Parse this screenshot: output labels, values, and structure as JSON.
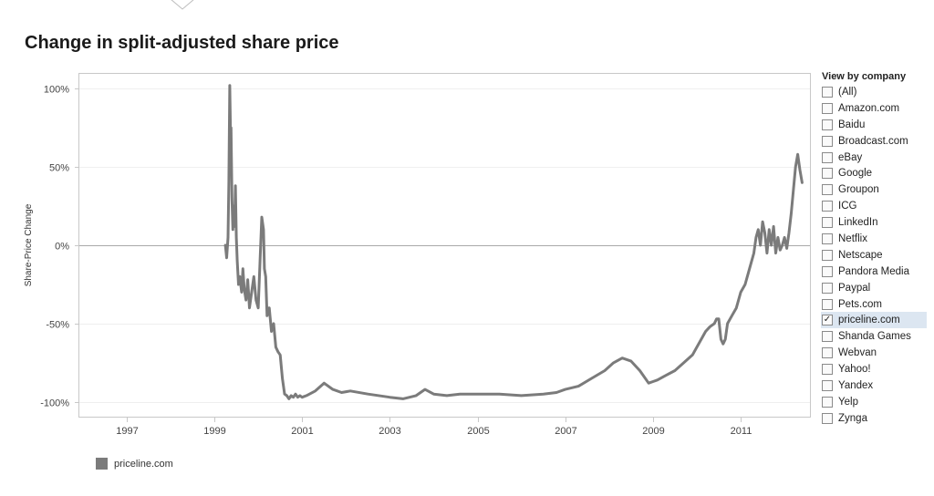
{
  "chart_data": {
    "type": "line",
    "title": "Change in split-adjusted share price",
    "xlabel": "",
    "ylabel": "Share-Price Change",
    "xlim": [
      1995.9,
      2012.6
    ],
    "ylim": [
      -110,
      110
    ],
    "y_ticks": [
      {
        "value": 100,
        "label": "100%"
      },
      {
        "value": 50,
        "label": "50%"
      },
      {
        "value": 0,
        "label": "0%"
      },
      {
        "value": -50,
        "label": "-50%"
      },
      {
        "value": -100,
        "label": "-100%"
      }
    ],
    "x_ticks": [
      {
        "value": 1997,
        "label": "1997"
      },
      {
        "value": 1999,
        "label": "1999"
      },
      {
        "value": 2001,
        "label": "2001"
      },
      {
        "value": 2003,
        "label": "2003"
      },
      {
        "value": 2005,
        "label": "2005"
      },
      {
        "value": 2007,
        "label": "2007"
      },
      {
        "value": 2009,
        "label": "2009"
      },
      {
        "value": 2011,
        "label": "2011"
      }
    ],
    "grid": true,
    "legend_position": "bottom-left",
    "series": [
      {
        "name": "priceline.com",
        "color": "#7b7b7b",
        "x": [
          1999.25,
          1999.28,
          1999.31,
          1999.33,
          1999.35,
          1999.37,
          1999.38,
          1999.4,
          1999.42,
          1999.44,
          1999.46,
          1999.48,
          1999.5,
          1999.52,
          1999.55,
          1999.58,
          1999.62,
          1999.65,
          1999.68,
          1999.72,
          1999.76,
          1999.8,
          1999.85,
          1999.9,
          1999.95,
          2000.0,
          2000.04,
          2000.08,
          2000.12,
          2000.14,
          2000.17,
          2000.2,
          2000.25,
          2000.3,
          2000.35,
          2000.4,
          2000.45,
          2000.5,
          2000.55,
          2000.6,
          2000.65,
          2000.7,
          2000.75,
          2000.8,
          2000.85,
          2000.9,
          2000.95,
          2001.0,
          2001.1,
          2001.3,
          2001.5,
          2001.7,
          2001.9,
          2002.1,
          2002.5,
          2003.0,
          2003.3,
          2003.6,
          2003.8,
          2004.0,
          2004.3,
          2004.6,
          2005.0,
          2005.5,
          2006.0,
          2006.5,
          2006.8,
          2007.0,
          2007.3,
          2007.6,
          2007.9,
          2008.1,
          2008.3,
          2008.5,
          2008.7,
          2008.9,
          2009.0,
          2009.1,
          2009.3,
          2009.5,
          2009.7,
          2009.9,
          2010.1,
          2010.2,
          2010.3,
          2010.4,
          2010.45,
          2010.5,
          2010.55,
          2010.6,
          2010.65,
          2010.7,
          2010.8,
          2010.9,
          2011.0,
          2011.1,
          2011.2,
          2011.3,
          2011.35,
          2011.4,
          2011.45,
          2011.5,
          2011.55,
          2011.6,
          2011.65,
          2011.7,
          2011.75,
          2011.8,
          2011.85,
          2011.9,
          2011.95,
          2012.0,
          2012.05,
          2012.1,
          2012.15,
          2012.2,
          2012.25,
          2012.3,
          2012.35,
          2012.4
        ],
        "values": [
          0,
          -8,
          5,
          40,
          102,
          65,
          75,
          30,
          10,
          25,
          12,
          38,
          5,
          -10,
          -25,
          -20,
          -30,
          -15,
          -28,
          -35,
          -22,
          -40,
          -30,
          -20,
          -35,
          -40,
          -10,
          18,
          10,
          -15,
          -20,
          -45,
          -40,
          -55,
          -50,
          -65,
          -68,
          -70,
          -85,
          -95,
          -96,
          -98,
          -96,
          -97,
          -95,
          -97,
          -96,
          -97,
          -96,
          -93,
          -88,
          -92,
          -94,
          -93,
          -95,
          -97,
          -98,
          -96,
          -92,
          -95,
          -96,
          -95,
          -95,
          -95,
          -96,
          -95,
          -94,
          -92,
          -90,
          -85,
          -80,
          -75,
          -72,
          -74,
          -80,
          -88,
          -87,
          -86,
          -83,
          -80,
          -75,
          -70,
          -60,
          -55,
          -52,
          -50,
          -47,
          -47,
          -60,
          -63,
          -60,
          -50,
          -45,
          -40,
          -30,
          -25,
          -15,
          -5,
          5,
          10,
          0,
          15,
          8,
          -5,
          10,
          0,
          12,
          -5,
          5,
          -3,
          0,
          5,
          -2,
          8,
          20,
          35,
          50,
          58,
          48,
          40
        ]
      }
    ]
  },
  "filter": {
    "title": "View by company",
    "options": [
      {
        "label": "(All)",
        "checked": false
      },
      {
        "label": "Amazon.com",
        "checked": false
      },
      {
        "label": "Baidu",
        "checked": false
      },
      {
        "label": "Broadcast.com",
        "checked": false
      },
      {
        "label": "eBay",
        "checked": false
      },
      {
        "label": "Google",
        "checked": false
      },
      {
        "label": "Groupon",
        "checked": false
      },
      {
        "label": "ICG",
        "checked": false
      },
      {
        "label": "LinkedIn",
        "checked": false
      },
      {
        "label": "Netflix",
        "checked": false
      },
      {
        "label": "Netscape",
        "checked": false
      },
      {
        "label": "Pandora Media",
        "checked": false
      },
      {
        "label": "Paypal",
        "checked": false
      },
      {
        "label": "Pets.com",
        "checked": false
      },
      {
        "label": "priceline.com",
        "checked": true
      },
      {
        "label": "Shanda Games",
        "checked": false
      },
      {
        "label": "Webvan",
        "checked": false
      },
      {
        "label": "Yahoo!",
        "checked": false
      },
      {
        "label": "Yandex",
        "checked": false
      },
      {
        "label": "Yelp",
        "checked": false
      },
      {
        "label": "Zynga",
        "checked": false
      }
    ]
  },
  "legend": {
    "label": "priceline.com",
    "color": "#7b7b7b"
  },
  "icons": {
    "top_notch": "chevron-down-icon",
    "checkbox": "checkbox-icon"
  }
}
